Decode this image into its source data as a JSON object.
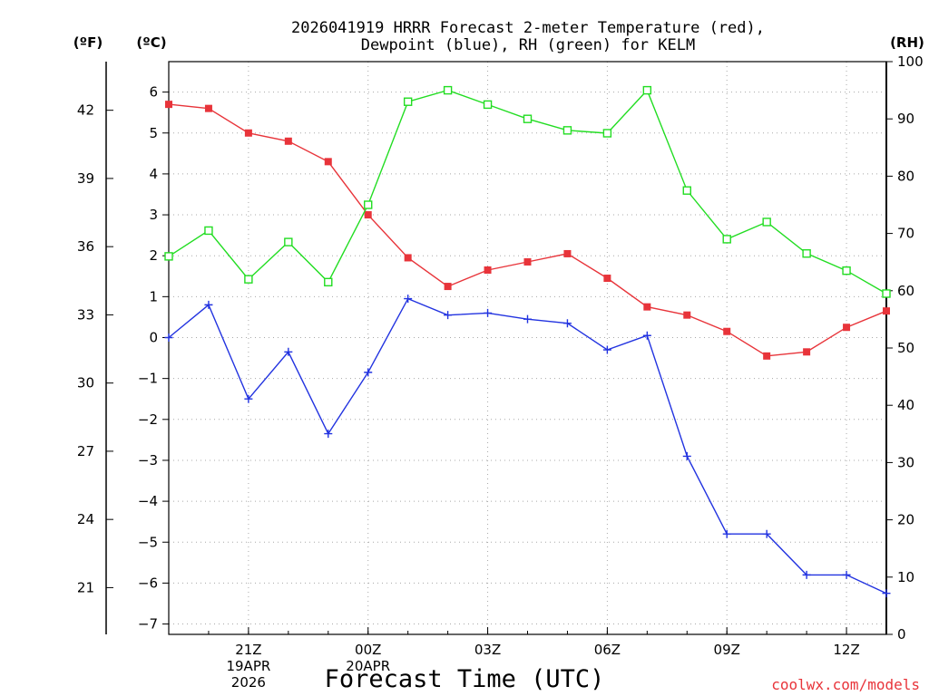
{
  "title_line1": "2026041919 HRRR Forecast 2-meter Temperature (red),",
  "title_line2": "Dewpoint (blue), RH (green) for KELM",
  "unit_f": "(ºF)",
  "unit_c": "(ºC)",
  "unit_rh": "(RH)",
  "x_axis_label": "Forecast Time (UTC)",
  "credit": "coolwx.com/models",
  "colors": {
    "temperature": "#e8343a",
    "dewpoint": "#2233e0",
    "rh": "#22dd22"
  },
  "chart_data": {
    "type": "line",
    "title": "2026041919 HRRR Forecast 2-meter Temperature (red), Dewpoint (blue), RH (green) for KELM",
    "xlabel": "Forecast Time (UTC)",
    "x": [
      "19Z",
      "20Z",
      "21Z",
      "22Z",
      "23Z",
      "00Z",
      "01Z",
      "02Z",
      "03Z",
      "04Z",
      "05Z",
      "06Z",
      "07Z",
      "08Z",
      "09Z",
      "10Z",
      "11Z",
      "12Z",
      "13Z"
    ],
    "x_tick_labels": [
      {
        "index": 2,
        "lines": [
          "21Z",
          "19APR",
          "2026"
        ]
      },
      {
        "index": 5,
        "lines": [
          "00Z",
          "20APR"
        ]
      },
      {
        "index": 8,
        "lines": [
          "03Z"
        ]
      },
      {
        "index": 11,
        "lines": [
          "06Z"
        ]
      },
      {
        "index": 14,
        "lines": [
          "09Z"
        ]
      },
      {
        "index": 17,
        "lines": [
          "12Z"
        ]
      }
    ],
    "y_left_c": {
      "label": "(ºC)",
      "range": [
        -7.3,
        6.6
      ],
      "ticks": [
        6,
        5,
        4,
        3,
        2,
        1,
        0,
        -1,
        -2,
        -3,
        -4,
        -5,
        -6,
        -7
      ]
    },
    "y_left_f": {
      "label": "(ºF)",
      "ticks": [
        42,
        39,
        36,
        33,
        30,
        27,
        24,
        21
      ]
    },
    "y_right_rh": {
      "label": "(RH)",
      "range": [
        0,
        100
      ],
      "ticks": [
        100,
        90,
        80,
        70,
        60,
        50,
        40,
        30,
        20,
        10,
        0
      ]
    },
    "grid": true,
    "series": [
      {
        "name": "Temperature (red)",
        "axis": "C",
        "color": "#e8343a",
        "marker": "filled-square",
        "values": [
          5.7,
          5.6,
          5.0,
          4.8,
          4.3,
          3.0,
          1.95,
          1.25,
          1.65,
          1.85,
          2.05,
          1.45,
          0.75,
          0.55,
          0.15,
          -0.45,
          -0.35,
          0.25,
          0.65
        ]
      },
      {
        "name": "Dewpoint (blue)",
        "axis": "C",
        "color": "#2233e0",
        "marker": "plus",
        "values": [
          0.0,
          0.8,
          -1.5,
          -0.35,
          -2.35,
          -0.85,
          0.95,
          0.55,
          0.6,
          0.45,
          0.35,
          -0.3,
          0.05,
          -2.9,
          -4.8,
          -4.8,
          -5.8,
          -5.8,
          -6.25
        ]
      },
      {
        "name": "RH (green)",
        "axis": "RH",
        "color": "#22dd22",
        "marker": "open-square",
        "values": [
          66,
          70.5,
          62,
          68.5,
          61.5,
          75,
          93,
          95,
          92.5,
          90,
          88,
          87.5,
          95,
          77.5,
          69,
          72,
          66.5,
          63.5,
          59.5
        ]
      }
    ]
  }
}
